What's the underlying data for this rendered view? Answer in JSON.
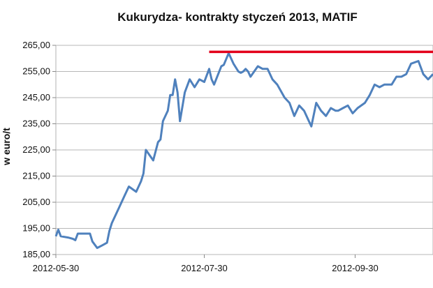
{
  "chart_data": {
    "type": "line",
    "title": "Kukurydza- kontrakty styczeń 2013, MATIF",
    "ylabel": "w euro/t",
    "xlabel": "",
    "ylim": [
      185,
      265
    ],
    "y_ticks": [
      185,
      195,
      205,
      215,
      225,
      235,
      245,
      255,
      265
    ],
    "y_tick_labels": [
      "185,00",
      "195,00",
      "205,00",
      "215,00",
      "225,00",
      "235,00",
      "245,00",
      "255,00",
      "265,00"
    ],
    "x_tick_labels": [
      "2012-05-30",
      "2012-07-30",
      "2012-09-30"
    ],
    "x_tick_dates": [
      "2012-05-30",
      "2012-07-30",
      "2012-09-30"
    ],
    "xlim": [
      "2012-05-30",
      "2012-11-01"
    ],
    "grid": "horizontal",
    "legend": "none",
    "series": [
      {
        "color": "#4f81bd",
        "x": [
          "2012-05-30",
          "2012-05-31",
          "2012-06-01",
          "2012-06-04",
          "2012-06-06",
          "2012-06-07",
          "2012-06-08",
          "2012-06-11",
          "2012-06-13",
          "2012-06-14",
          "2012-06-16",
          "2012-06-18",
          "2012-06-20",
          "2012-06-21",
          "2012-06-22",
          "2012-06-23",
          "2012-06-25",
          "2012-06-27",
          "2012-06-29",
          "2012-07-02",
          "2012-07-04",
          "2012-07-05",
          "2012-07-06",
          "2012-07-09",
          "2012-07-11",
          "2012-07-12",
          "2012-07-13",
          "2012-07-15",
          "2012-07-16",
          "2012-07-17",
          "2012-07-18",
          "2012-07-19",
          "2012-07-20",
          "2012-07-22",
          "2012-07-24",
          "2012-07-26",
          "2012-07-28",
          "2012-07-30",
          "2012-08-01",
          "2012-08-02",
          "2012-08-03",
          "2012-08-06",
          "2012-08-07",
          "2012-08-09",
          "2012-08-11",
          "2012-08-13",
          "2012-08-14",
          "2012-08-15",
          "2012-08-16",
          "2012-08-17",
          "2012-08-18",
          "2012-08-21",
          "2012-08-23",
          "2012-08-25",
          "2012-08-27",
          "2012-08-29",
          "2012-09-01",
          "2012-09-03",
          "2012-09-05",
          "2012-09-07",
          "2012-09-09",
          "2012-09-11",
          "2012-09-12",
          "2012-09-14",
          "2012-09-16",
          "2012-09-18",
          "2012-09-20",
          "2012-09-22",
          "2012-09-23",
          "2012-09-25",
          "2012-09-27",
          "2012-09-29",
          "2012-10-01",
          "2012-10-04",
          "2012-10-06",
          "2012-10-08",
          "2012-10-10",
          "2012-10-12",
          "2012-10-15",
          "2012-10-17",
          "2012-10-19",
          "2012-10-21",
          "2012-10-23",
          "2012-10-26",
          "2012-10-28",
          "2012-10-30",
          "2012-11-01"
        ],
        "values": [
          192.0,
          194.5,
          192.0,
          191.5,
          191.0,
          190.5,
          193.0,
          193.0,
          193.0,
          190.0,
          187.5,
          188.5,
          189.5,
          194.0,
          197.0,
          199.0,
          203.0,
          207.0,
          211.0,
          209.0,
          213.0,
          216.0,
          225.0,
          221.0,
          228.0,
          229.0,
          236.0,
          240.0,
          246.0,
          246.0,
          252.0,
          247.0,
          236.0,
          247.0,
          252.0,
          249.0,
          252.0,
          251.0,
          256.0,
          252.0,
          250.0,
          257.0,
          257.5,
          262.0,
          258.0,
          255.0,
          254.5,
          255.0,
          256.0,
          255.0,
          253.0,
          257.0,
          256.0,
          256.0,
          252.0,
          250.0,
          245.0,
          243.0,
          238.0,
          242.0,
          240.0,
          236.0,
          234.0,
          243.0,
          240.0,
          238.0,
          241.0,
          240.0,
          240.0,
          241.0,
          242.0,
          239.0,
          241.0,
          243.0,
          246.0,
          250.0,
          249.0,
          250.0,
          250.0,
          253.0,
          253.0,
          254.0,
          258.0,
          259.0,
          254.0,
          252.0,
          254.0
        ]
      },
      {
        "color": "#e3001b",
        "x": [
          "2012-08-01",
          "2012-11-01"
        ],
        "values": [
          262.5,
          262.5
        ]
      }
    ]
  }
}
